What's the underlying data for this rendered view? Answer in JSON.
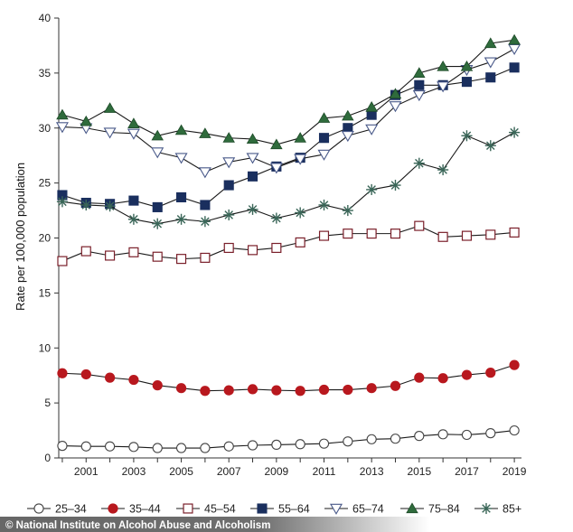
{
  "credit": "© National Institute on Alcohol Abuse and Alcoholism",
  "chart_data": {
    "type": "line",
    "title": "",
    "xlabel": "",
    "ylabel": "Rate per 100,000 population",
    "xlim": [
      1999.85,
      2019.3
    ],
    "ylim": [
      0,
      40
    ],
    "x": [
      2000,
      2001,
      2002,
      2003,
      2004,
      2005,
      2006,
      2007,
      2008,
      2009,
      2010,
      2011,
      2012,
      2013,
      2014,
      2015,
      2016,
      2017,
      2018,
      2019
    ],
    "x_ticks": [
      2000,
      2001,
      2002,
      2003,
      2004,
      2005,
      2006,
      2007,
      2008,
      2009,
      2010,
      2011,
      2012,
      2013,
      2014,
      2015,
      2016,
      2017,
      2018,
      2019
    ],
    "x_tick_labels": [
      "2001",
      "2003",
      "2005",
      "2007",
      "2009",
      "2011",
      "2013",
      "2015",
      "2017",
      "2019"
    ],
    "x_labeled_ticks": [
      2001,
      2003,
      2005,
      2007,
      2009,
      2011,
      2013,
      2015,
      2017,
      2019
    ],
    "y_ticks": [
      0,
      5,
      10,
      15,
      20,
      25,
      30,
      35,
      40
    ],
    "y_tick_labels": [
      "0",
      "5",
      "10",
      "15",
      "20",
      "25",
      "30",
      "35",
      "40"
    ],
    "grid": false,
    "legend_position": "bottom",
    "series": [
      {
        "name": "25–34",
        "marker": "circle-open",
        "color": "#444444",
        "fill": "#ffffff",
        "values": [
          1.1,
          1.05,
          1.05,
          1.0,
          0.9,
          0.9,
          0.9,
          1.05,
          1.15,
          1.2,
          1.25,
          1.3,
          1.5,
          1.7,
          1.75,
          2.0,
          2.15,
          2.1,
          2.25,
          2.5
        ]
      },
      {
        "name": "35–44",
        "marker": "circle-filled",
        "color": "#b8181e",
        "fill": "#b8181e",
        "values": [
          7.7,
          7.6,
          7.3,
          7.1,
          6.6,
          6.35,
          6.1,
          6.15,
          6.25,
          6.15,
          6.1,
          6.2,
          6.2,
          6.35,
          6.55,
          7.3,
          7.25,
          7.55,
          7.75,
          8.45
        ]
      },
      {
        "name": "45–54",
        "marker": "square-open",
        "color": "#7a1f2a",
        "fill": "#ffffff",
        "values": [
          17.9,
          18.8,
          18.4,
          18.7,
          18.3,
          18.1,
          18.2,
          19.1,
          18.9,
          19.1,
          19.6,
          20.2,
          20.4,
          20.4,
          20.4,
          21.1,
          20.1,
          20.2,
          20.3,
          20.5
        ]
      },
      {
        "name": "55–64",
        "marker": "square-filled",
        "color": "#1a2f5e",
        "fill": "#1a2f5e",
        "values": [
          23.9,
          23.2,
          23.1,
          23.4,
          22.8,
          23.7,
          23.0,
          24.8,
          25.6,
          26.5,
          27.3,
          29.1,
          30.0,
          31.2,
          33.0,
          33.9,
          33.9,
          34.2,
          34.6,
          35.5
        ]
      },
      {
        "name": "65–74",
        "marker": "triangle-down-open",
        "color": "#4a5a8a",
        "fill": "#ffffff",
        "values": [
          30.1,
          30.0,
          29.6,
          29.5,
          27.8,
          27.3,
          26.0,
          26.9,
          27.3,
          26.4,
          27.2,
          27.6,
          29.3,
          29.9,
          32.0,
          33.0,
          33.8,
          35.3,
          36.0,
          37.2
        ]
      },
      {
        "name": "75–84",
        "marker": "triangle-up-filled",
        "color": "#2f6b3c",
        "fill": "#2f6b3c",
        "values": [
          31.2,
          30.6,
          31.8,
          30.4,
          29.3,
          29.8,
          29.5,
          29.1,
          29.0,
          28.5,
          29.1,
          30.9,
          31.1,
          31.9,
          33.1,
          35.0,
          35.6,
          35.6,
          37.7,
          38.0
        ]
      },
      {
        "name": "85+",
        "marker": "asterisk",
        "color": "#3a6658",
        "fill": "none",
        "values": [
          23.3,
          23.0,
          22.9,
          21.7,
          21.3,
          21.7,
          21.5,
          22.1,
          22.6,
          21.8,
          22.3,
          23.0,
          22.5,
          24.4,
          24.8,
          26.8,
          26.2,
          29.3,
          28.4,
          29.6
        ]
      }
    ]
  }
}
